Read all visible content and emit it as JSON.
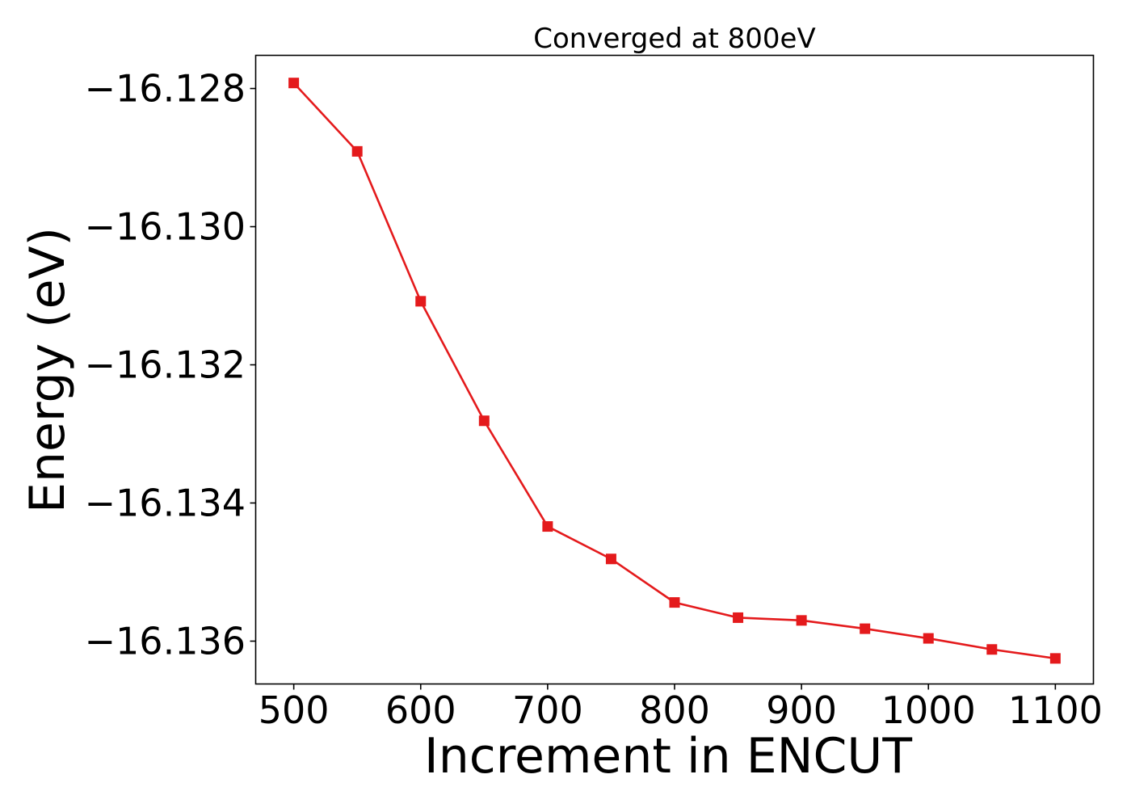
{
  "chart_data": {
    "type": "line",
    "title": "Converged at 800eV",
    "xlabel": "Increment in ENCUT",
    "ylabel": "Energy (eV)",
    "xlim": [
      470,
      1130
    ],
    "ylim": [
      -16.13662,
      -16.12752
    ],
    "grid": false,
    "x_ticks": [
      500,
      600,
      700,
      800,
      900,
      1000,
      1100
    ],
    "x_tick_labels": [
      "500",
      "600",
      "700",
      "800",
      "900",
      "1000",
      "1100"
    ],
    "y_ticks": [
      -16.128,
      -16.13,
      -16.132,
      -16.134,
      -16.136
    ],
    "y_tick_labels": [
      "−16.128",
      "−16.130",
      "−16.132",
      "−16.134",
      "−16.136"
    ],
    "series": [
      {
        "marker": "square",
        "color": "#e41a1c",
        "x": [
          500,
          550,
          600,
          650,
          700,
          750,
          800,
          850,
          900,
          950,
          1000,
          1050,
          1100
        ],
        "y": [
          -16.12792,
          -16.12891,
          -16.13108,
          -16.13281,
          -16.13434,
          -16.13481,
          -16.13544,
          -16.13566,
          -16.1357,
          -16.13582,
          -16.13596,
          -16.13612,
          -16.13625
        ]
      }
    ]
  }
}
